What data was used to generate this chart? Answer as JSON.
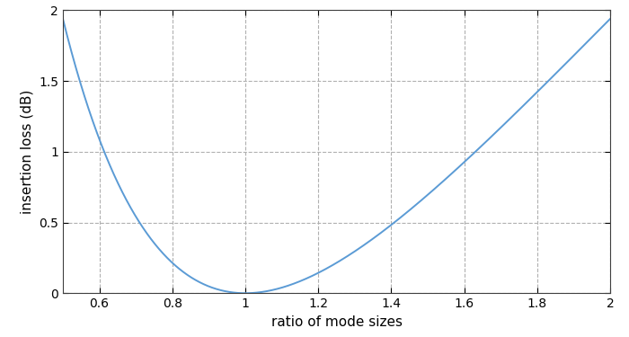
{
  "xlabel": "ratio of mode sizes",
  "ylabel": "insertion loss (dB)",
  "xlim": [
    0.5,
    2.0
  ],
  "ylim": [
    0.0,
    2.0
  ],
  "xticks": [
    0.6,
    0.8,
    1.0,
    1.2,
    1.4,
    1.6,
    1.8,
    2.0
  ],
  "yticks": [
    0.0,
    0.5,
    1.0,
    1.5,
    2.0
  ],
  "line_color": "#5b9bd5",
  "line_width": 1.4,
  "grid_color": "#b0b0b0",
  "grid_style": "--",
  "background_color": "#ffffff",
  "figsize": [
    7.0,
    3.75
  ],
  "dpi": 100
}
